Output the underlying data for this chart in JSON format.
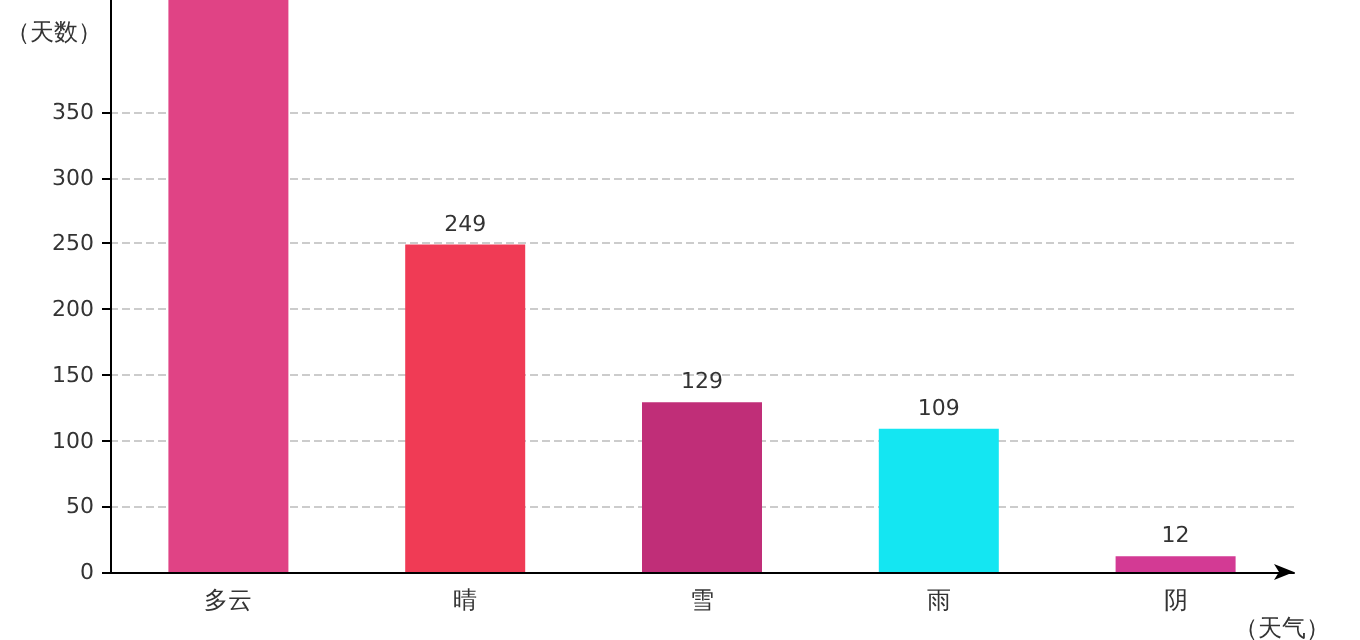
{
  "chart_data": {
    "type": "bar",
    "ylabel": "（天数）",
    "xlabel": "（天气）",
    "categories": [
      "多云",
      "晴",
      "雪",
      "雨",
      "阴"
    ],
    "values": [
      435,
      249,
      129,
      109,
      12
    ],
    "colors": [
      "#e04385",
      "#f03b55",
      "#c02e78",
      "#14e6f2",
      "#d33a94"
    ],
    "value_labels": [
      null,
      "249",
      "129",
      "109",
      "12"
    ],
    "ylim": [
      0,
      435
    ],
    "yticks": [
      0,
      50,
      100,
      150,
      200,
      250,
      300,
      350
    ],
    "grid": "y"
  }
}
